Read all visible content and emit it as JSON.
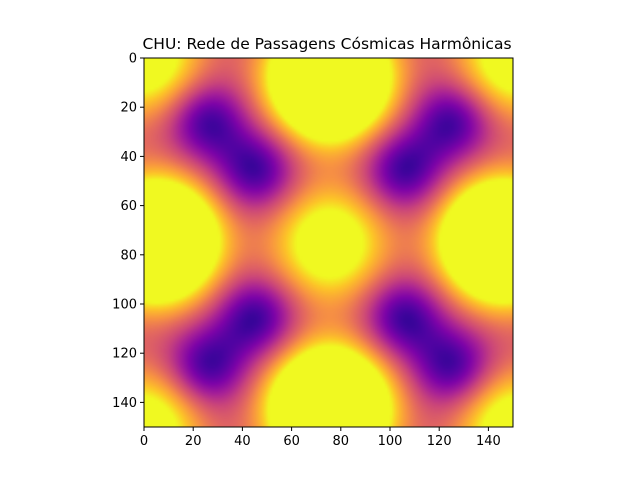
{
  "chart_data": {
    "type": "heatmap",
    "title": "CHU: Rede de Passagens Cósmicas Harmônicas",
    "xlabel": "",
    "ylabel": "",
    "grid_size": [
      150,
      150
    ],
    "xlim": [
      0,
      150
    ],
    "ylim": [
      150,
      0
    ],
    "x_ticks": [
      0,
      20,
      40,
      60,
      80,
      100,
      120,
      140
    ],
    "y_ticks": [
      0,
      20,
      40,
      60,
      80,
      100,
      120,
      140
    ],
    "colormap": "plasma",
    "bright_peaks": [
      {
        "x": 75,
        "y": 8,
        "level": "saturated"
      },
      {
        "x": 75,
        "y": 142,
        "level": "saturated"
      },
      {
        "x": 5,
        "y": 74,
        "level": "saturated"
      },
      {
        "x": 145,
        "y": 74,
        "level": "saturated"
      },
      {
        "x": 75,
        "y": 75,
        "level": "high"
      },
      {
        "x": 0,
        "y": 0,
        "level": "high"
      },
      {
        "x": 150,
        "y": 0,
        "level": "high"
      },
      {
        "x": 0,
        "y": 150,
        "level": "high"
      },
      {
        "x": 150,
        "y": 150,
        "level": "high"
      }
    ],
    "dark_minima": [
      {
        "x": 45,
        "y": 45
      },
      {
        "x": 105,
        "y": 45
      },
      {
        "x": 45,
        "y": 105
      },
      {
        "x": 105,
        "y": 105
      },
      {
        "x": 25,
        "y": 25
      },
      {
        "x": 125,
        "y": 25
      },
      {
        "x": 25,
        "y": 125
      },
      {
        "x": 125,
        "y": 125
      }
    ]
  }
}
